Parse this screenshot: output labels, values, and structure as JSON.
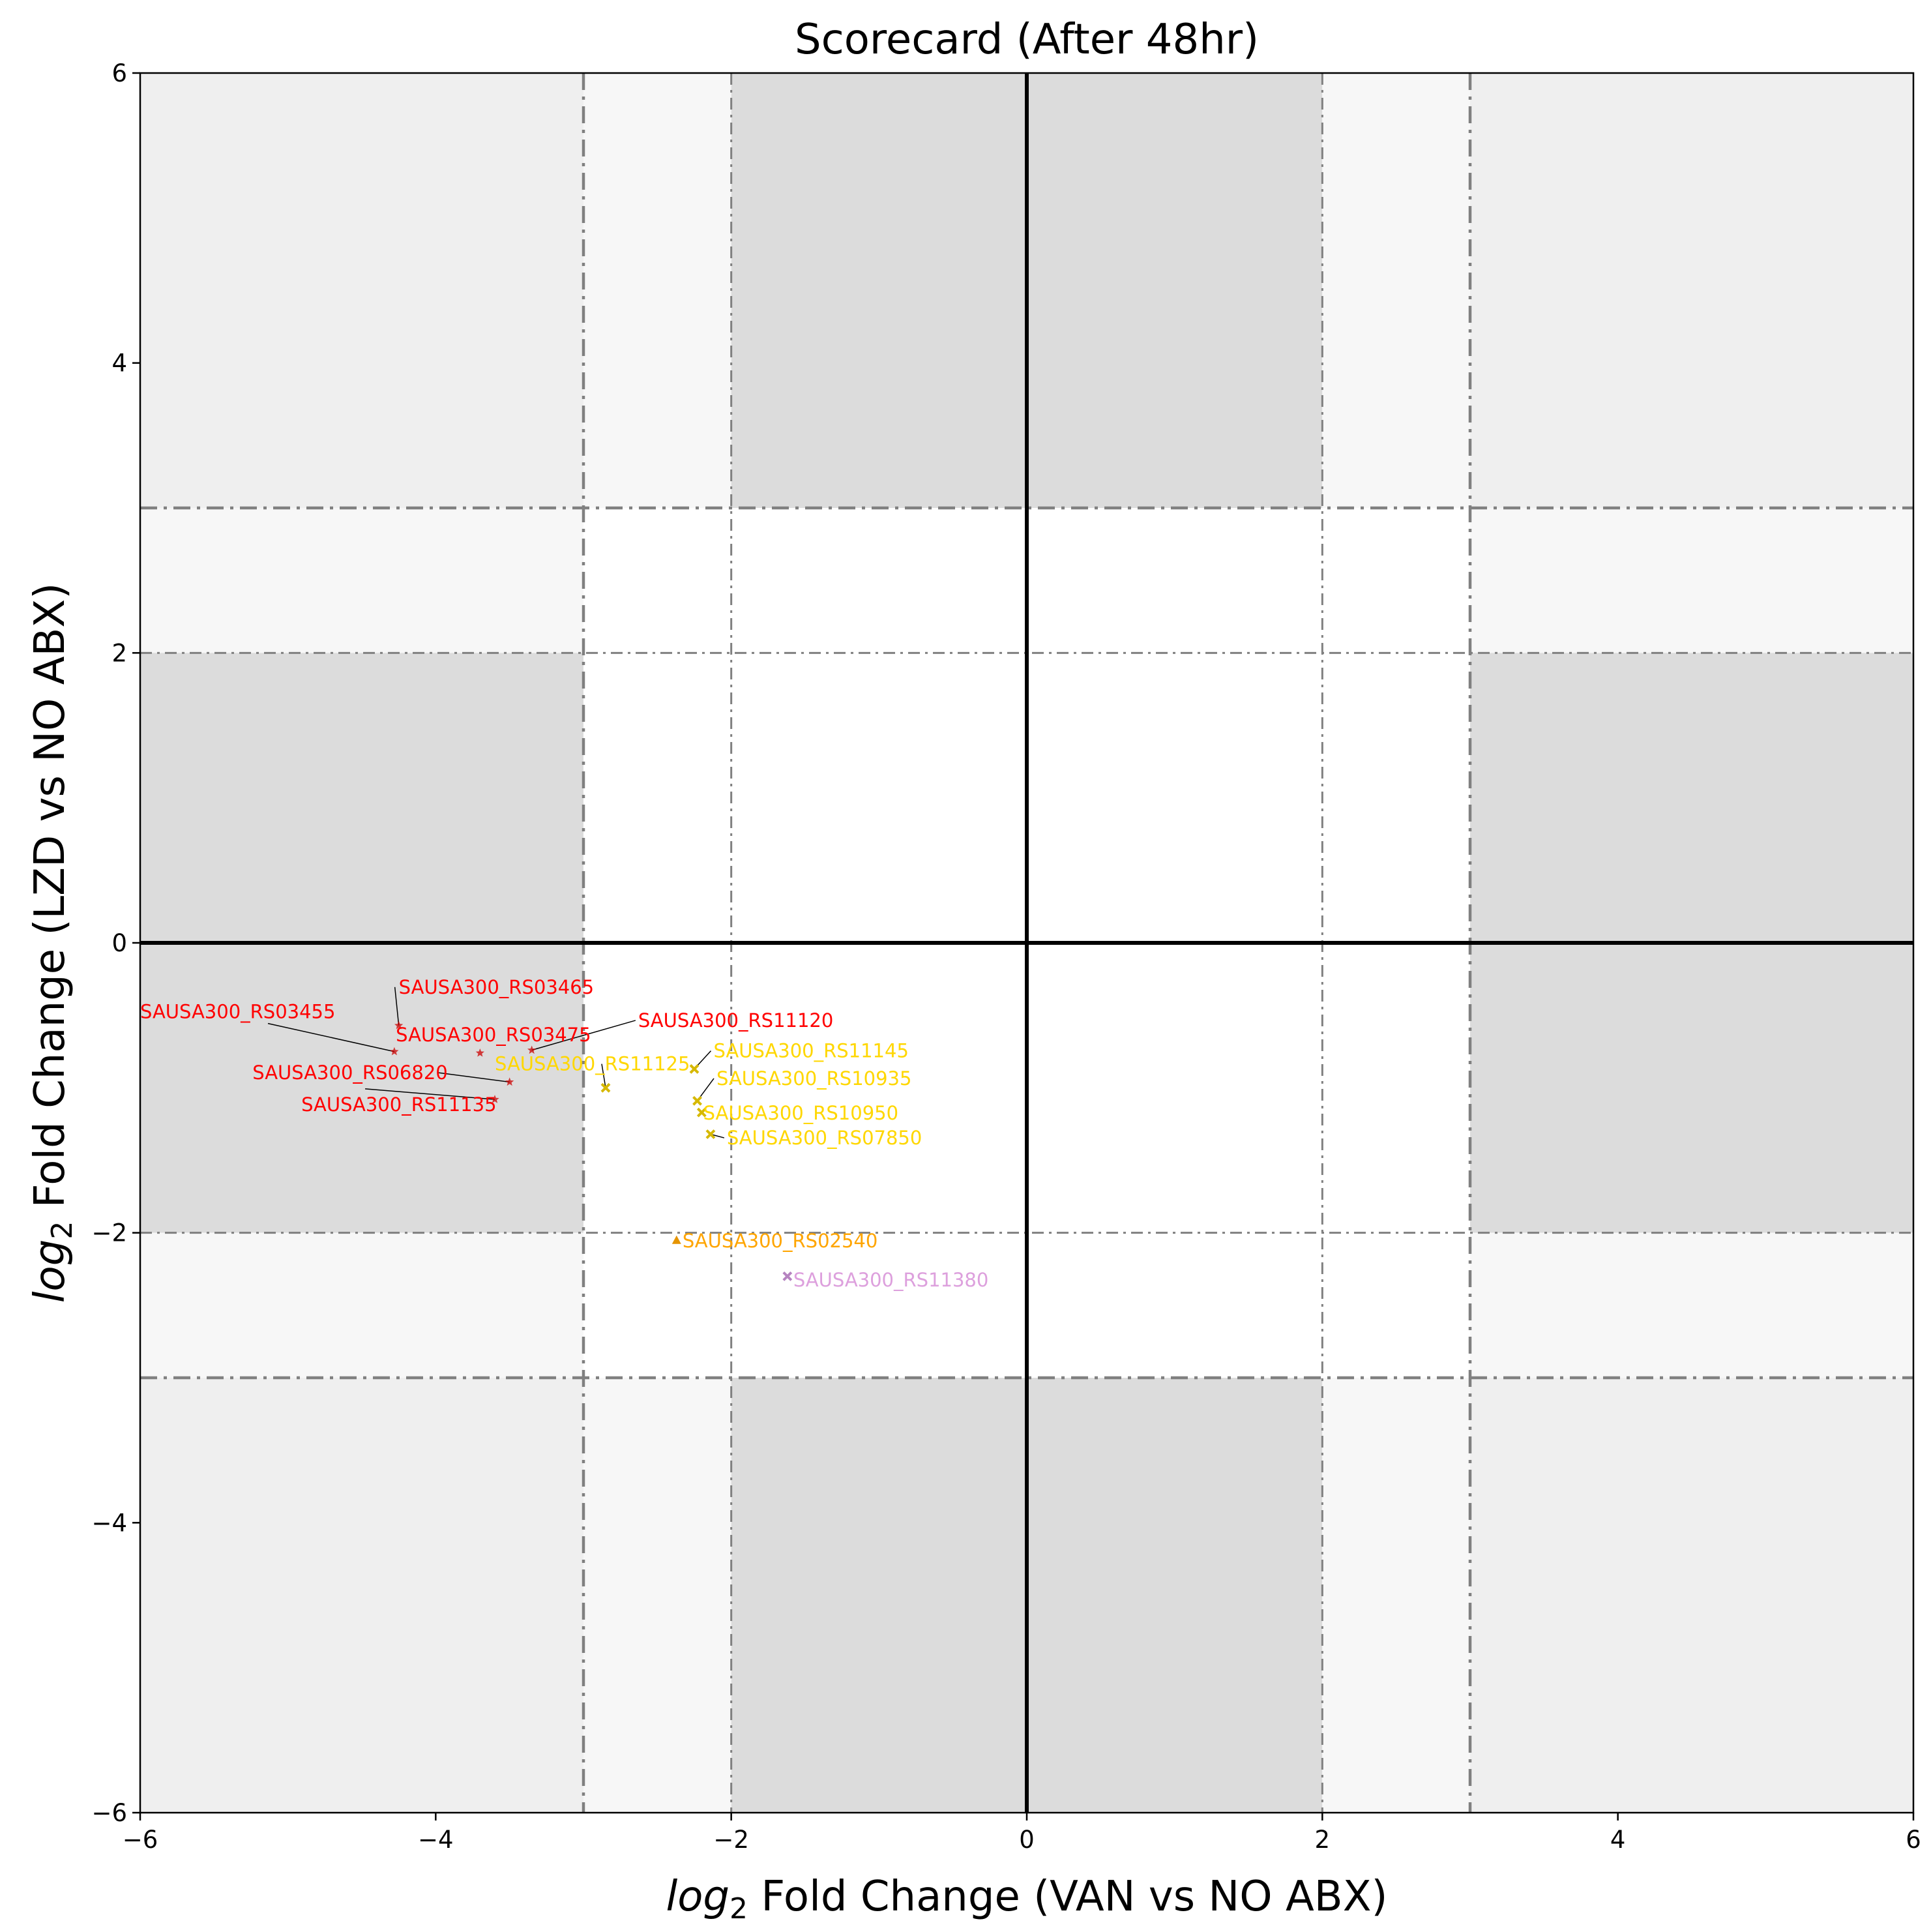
{
  "chart_data": {
    "type": "scatter",
    "title": "Scorecard (After 48hr)",
    "xlabel": {
      "italic": "log",
      "sub": "2",
      "rest": " Fold Change (VAN vs NO ABX)"
    },
    "ylabel": {
      "italic": "log",
      "sub": "2",
      "rest": " Fold Change (LZD vs NO ABX)"
    },
    "xlim": [
      -6,
      6
    ],
    "ylim": [
      -6,
      6
    ],
    "xticks": [
      -6,
      -4,
      -2,
      0,
      2,
      4,
      6
    ],
    "yticks": [
      -6,
      -4,
      -2,
      0,
      2,
      4,
      6
    ],
    "xtick_labels": [
      "−6",
      "−4",
      "−2",
      "0",
      "2",
      "4",
      "6"
    ],
    "ytick_labels": [
      "−6",
      "−4",
      "−2",
      "0",
      "2",
      "4",
      "6"
    ],
    "grid": false,
    "threshold_lines": {
      "inner": 2,
      "outer": 3,
      "style": "dash-dot",
      "color": "#808080"
    },
    "regions": [
      {
        "x": [
          -6,
          -3
        ],
        "y": [
          3,
          6
        ],
        "color": "#efefef"
      },
      {
        "x": [
          -3,
          -2
        ],
        "y": [
          3,
          6
        ],
        "color": "#f7f7f7"
      },
      {
        "x": [
          -2,
          2
        ],
        "y": [
          3,
          6
        ],
        "color": "#dcdcdc"
      },
      {
        "x": [
          2,
          3
        ],
        "y": [
          3,
          6
        ],
        "color": "#f7f7f7"
      },
      {
        "x": [
          3,
          6
        ],
        "y": [
          3,
          6
        ],
        "color": "#efefef"
      },
      {
        "x": [
          -6,
          -3
        ],
        "y": [
          2,
          3
        ],
        "color": "#f7f7f7"
      },
      {
        "x": [
          3,
          6
        ],
        "y": [
          2,
          3
        ],
        "color": "#f7f7f7"
      },
      {
        "x": [
          -6,
          -3
        ],
        "y": [
          -2,
          2
        ],
        "color": "#dcdcdc"
      },
      {
        "x": [
          3,
          6
        ],
        "y": [
          -2,
          2
        ],
        "color": "#dcdcdc"
      },
      {
        "x": [
          -6,
          -3
        ],
        "y": [
          -3,
          -2
        ],
        "color": "#f7f7f7"
      },
      {
        "x": [
          3,
          6
        ],
        "y": [
          -3,
          -2
        ],
        "color": "#f7f7f7"
      },
      {
        "x": [
          -6,
          -3
        ],
        "y": [
          -6,
          -3
        ],
        "color": "#efefef"
      },
      {
        "x": [
          -3,
          -2
        ],
        "y": [
          -6,
          -3
        ],
        "color": "#f7f7f7"
      },
      {
        "x": [
          -2,
          2
        ],
        "y": [
          -6,
          -3
        ],
        "color": "#dcdcdc"
      },
      {
        "x": [
          2,
          3
        ],
        "y": [
          -6,
          -3
        ],
        "color": "#f7f7f7"
      },
      {
        "x": [
          3,
          6
        ],
        "y": [
          -6,
          -3
        ],
        "color": "#efefef"
      }
    ],
    "points": [
      {
        "name": "SAUSA300_RS03455",
        "x": -4.28,
        "y": -0.75,
        "color": "#cc0000",
        "marker": "star",
        "label_x": -6.0,
        "label_y": -0.52,
        "label_color": "#ff0000",
        "leader": true
      },
      {
        "name": "SAUSA300_RS03465",
        "x": -4.25,
        "y": -0.57,
        "color": "#cc0000",
        "marker": "star",
        "label_x": -4.25,
        "label_y": -0.35,
        "label_color": "#ff0000",
        "leader": true
      },
      {
        "name": "SAUSA300_RS03475",
        "x": -3.7,
        "y": -0.76,
        "color": "#cc0000",
        "marker": "star",
        "label_x": -4.27,
        "label_y": -0.68,
        "label_color": "#ff0000",
        "leader": false
      },
      {
        "name": "SAUSA300_RS11120",
        "x": -3.35,
        "y": -0.74,
        "color": "#cc0000",
        "marker": "star",
        "label_x": -2.63,
        "label_y": -0.58,
        "label_color": "#ff0000",
        "leader": true
      },
      {
        "name": "SAUSA300_RS06820",
        "x": -3.5,
        "y": -0.96,
        "color": "#cc0000",
        "marker": "star",
        "label_x": -5.24,
        "label_y": -0.94,
        "label_color": "#ff0000",
        "leader": true
      },
      {
        "name": "SAUSA300_RS11135",
        "x": -3.6,
        "y": -1.08,
        "color": "#cc0000",
        "marker": "star",
        "label_x": -4.91,
        "label_y": -1.16,
        "label_color": "#ff0000",
        "leader": true
      },
      {
        "name": "SAUSA300_RS11125",
        "x": -2.85,
        "y": -1.0,
        "color": "#d6b800",
        "marker": "x",
        "label_x": -3.6,
        "label_y": -0.88,
        "label_color": "#ffd700",
        "leader": true
      },
      {
        "name": "SAUSA300_RS11145",
        "x": -2.25,
        "y": -0.87,
        "color": "#d6b800",
        "marker": "x",
        "label_x": -2.12,
        "label_y": -0.79,
        "label_color": "#ffd700",
        "leader": true
      },
      {
        "name": "SAUSA300_RS10935",
        "x": -2.23,
        "y": -1.09,
        "color": "#d6b800",
        "marker": "x",
        "label_x": -2.1,
        "label_y": -0.98,
        "label_color": "#ffd700",
        "leader": true
      },
      {
        "name": "SAUSA300_RS10950",
        "x": -2.2,
        "y": -1.17,
        "color": "#d6b800",
        "marker": "x",
        "label_x": -2.19,
        "label_y": -1.22,
        "label_color": "#ffd700",
        "leader": false
      },
      {
        "name": "SAUSA300_RS07850",
        "x": -2.14,
        "y": -1.32,
        "color": "#d6b800",
        "marker": "x",
        "label_x": -2.03,
        "label_y": -1.39,
        "label_color": "#ffd700",
        "leader": true
      },
      {
        "name": "SAUSA300_RS02540",
        "x": -2.37,
        "y": -2.05,
        "color": "#e59400",
        "marker": "triangle",
        "label_x": -2.33,
        "label_y": -2.1,
        "label_color": "#ffa500",
        "leader": false
      },
      {
        "name": "SAUSA300_RS11380",
        "x": -1.62,
        "y": -2.3,
        "color": "#b583c0",
        "marker": "x",
        "label_x": -1.58,
        "label_y": -2.37,
        "label_color": "#dda0dd",
        "leader": false
      }
    ]
  }
}
